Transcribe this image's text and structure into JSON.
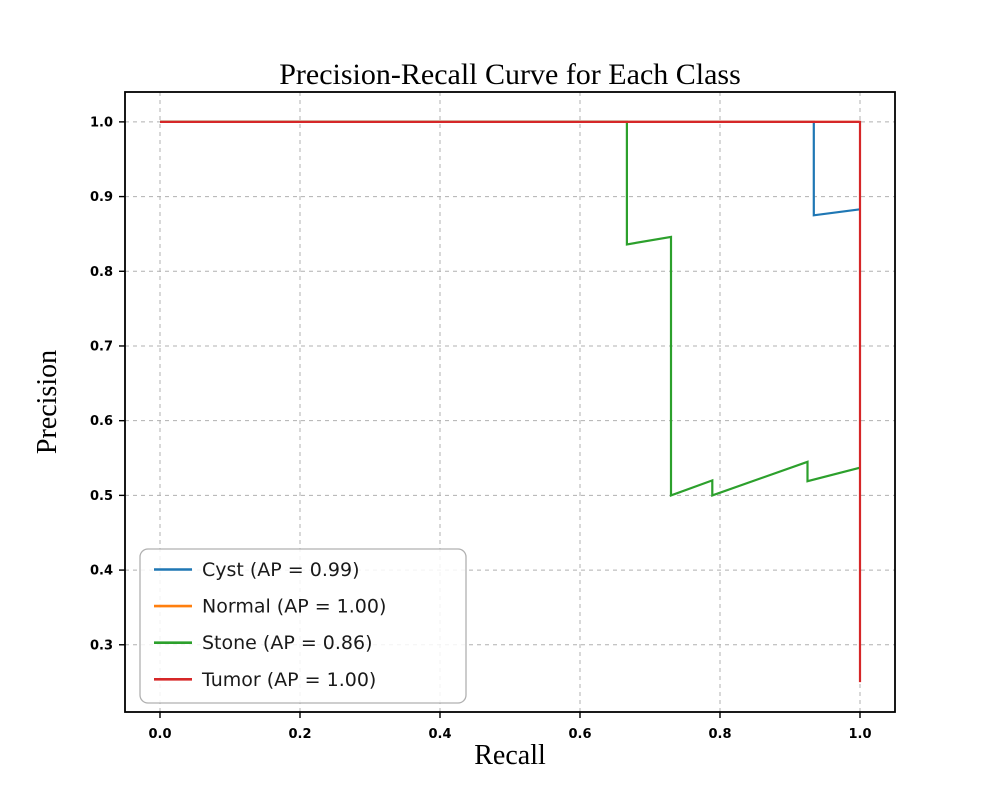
{
  "chart_data": {
    "type": "line",
    "title": "Precision-Recall Curve for Each Class",
    "xlabel": "Recall",
    "ylabel": "Precision",
    "xlim": [
      -0.05,
      1.05
    ],
    "ylim": [
      0.21,
      1.04
    ],
    "x_ticks": [
      "0.0",
      "0.2",
      "0.4",
      "0.6",
      "0.8",
      "1.0"
    ],
    "x_tick_values": [
      0.0,
      0.2,
      0.4,
      0.6,
      0.8,
      1.0
    ],
    "y_ticks": [
      "0.3",
      "0.4",
      "0.5",
      "0.6",
      "0.7",
      "0.8",
      "0.9",
      "1.0"
    ],
    "y_tick_values": [
      0.3,
      0.4,
      0.5,
      0.6,
      0.7,
      0.8,
      0.9,
      1.0
    ],
    "grid": true,
    "grid_style": "dashed",
    "legend_position": "lower left",
    "series": [
      {
        "name": "Cyst (AP = 0.99)",
        "class": "Cyst",
        "ap": 0.99,
        "color": "#1f77b4",
        "points": [
          [
            0.0,
            1.0
          ],
          [
            0.934,
            1.0
          ],
          [
            0.934,
            0.875
          ],
          [
            1.0,
            0.883
          ]
        ]
      },
      {
        "name": "Normal (AP = 1.00)",
        "class": "Normal",
        "ap": 1.0,
        "color": "#ff7f0e",
        "points": [
          [
            0.0,
            1.0
          ],
          [
            1.0,
            1.0
          ]
        ]
      },
      {
        "name": "Stone (AP = 0.86)",
        "class": "Stone",
        "ap": 0.86,
        "color": "#2ca02c",
        "points": [
          [
            0.0,
            1.0
          ],
          [
            0.667,
            1.0
          ],
          [
            0.667,
            0.836
          ],
          [
            0.73,
            0.846
          ],
          [
            0.73,
            0.5
          ],
          [
            0.789,
            0.52
          ],
          [
            0.789,
            0.5
          ],
          [
            0.925,
            0.545
          ],
          [
            0.925,
            0.519
          ],
          [
            1.0,
            0.537
          ]
        ]
      },
      {
        "name": "Tumor (AP = 1.00)",
        "class": "Tumor",
        "ap": 1.0,
        "color": "#d62728",
        "points": [
          [
            0.0,
            1.0
          ],
          [
            1.0,
            1.0
          ],
          [
            1.0,
            0.25
          ]
        ]
      }
    ]
  }
}
